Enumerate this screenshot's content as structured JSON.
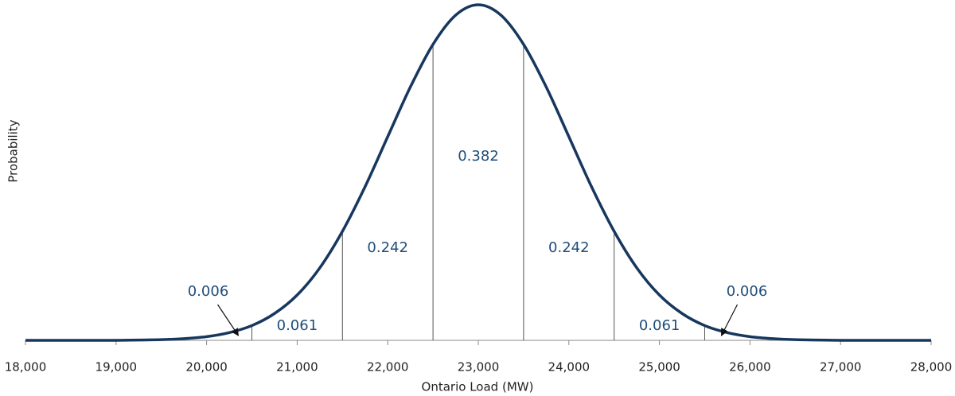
{
  "chart_data": {
    "type": "line",
    "x_label": "Ontario Load (MW)",
    "y_label": "Probability",
    "x": [
      18000,
      18250,
      18500,
      18750,
      19000,
      19250,
      19500,
      19750,
      20000,
      20250,
      20500,
      20750,
      21000,
      21250,
      21500,
      21750,
      22000,
      22250,
      22500,
      22750,
      23000,
      23250,
      23500,
      23750,
      24000,
      24250,
      24500,
      24750,
      25000,
      25250,
      25500,
      25750,
      26000,
      26250,
      26500,
      26750,
      27000,
      27250,
      27500,
      27750,
      28000
    ],
    "series": [
      {
        "color": "#17375e",
        "values": [
          0,
          0,
          0,
          0,
          0,
          0.001,
          0.002,
          0.005,
          0.011,
          0.023,
          0.044,
          0.08,
          0.135,
          0.216,
          0.325,
          0.458,
          0.607,
          0.755,
          0.882,
          0.969,
          1,
          0.969,
          0.882,
          0.755,
          0.607,
          0.458,
          0.325,
          0.216,
          0.135,
          0.08,
          0.044,
          0.023,
          0.011,
          0.005,
          0.002,
          0.001,
          0,
          0,
          0,
          0,
          0
        ]
      }
    ],
    "boundaries": [
      20500,
      21500,
      22500,
      23500,
      24500,
      25500
    ],
    "region_probabilities": [
      0.006,
      0.061,
      0.242,
      0.382,
      0.242,
      0.061,
      0.006
    ],
    "xlim": [
      18000,
      28000
    ],
    "ylim": [
      0,
      1
    ],
    "xticks": [
      {
        "value": 18000,
        "label": "18,000"
      },
      {
        "value": 19000,
        "label": "19,000"
      },
      {
        "value": 20000,
        "label": "20,000"
      },
      {
        "value": 21000,
        "label": "21,000"
      },
      {
        "value": 22000,
        "label": "22,000"
      },
      {
        "value": 23000,
        "label": "23,000"
      },
      {
        "value": 24000,
        "label": "24,000"
      },
      {
        "value": 25000,
        "label": "25,000"
      },
      {
        "value": 26000,
        "label": "26,000"
      },
      {
        "value": 27000,
        "label": "27,000"
      },
      {
        "value": 28000,
        "label": "28,000"
      }
    ]
  }
}
